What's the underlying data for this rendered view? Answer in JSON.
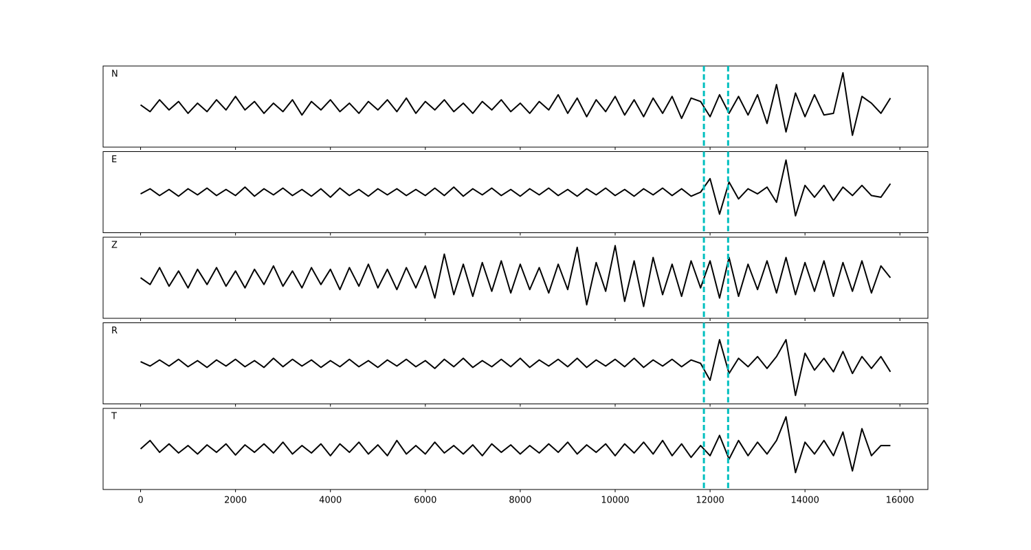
{
  "chart_data": {
    "type": "line",
    "x": [
      0,
      200,
      400,
      600,
      800,
      1000,
      1200,
      1400,
      1600,
      1800,
      2000,
      2200,
      2400,
      2600,
      2800,
      3000,
      3200,
      3400,
      3600,
      3800,
      4000,
      4200,
      4400,
      4600,
      4800,
      5000,
      5200,
      5400,
      5600,
      5800,
      6000,
      6200,
      6400,
      6600,
      6800,
      7000,
      7200,
      7400,
      7600,
      7800,
      8000,
      8200,
      8400,
      8600,
      8800,
      9000,
      9200,
      9400,
      9600,
      9800,
      10000,
      10200,
      10400,
      10600,
      10800,
      11000,
      11200,
      11400,
      11600,
      11800,
      12000,
      12200,
      12400,
      12600,
      12800,
      13000,
      13200,
      13400,
      13600,
      13800,
      14000,
      14200,
      14400,
      14600,
      14800,
      15000,
      15200,
      15400,
      15600,
      15800
    ],
    "series": [
      {
        "name": "N",
        "color": "#000000",
        "values": [
          0.05,
          -0.15,
          0.2,
          -0.1,
          0.15,
          -0.2,
          0.1,
          -0.15,
          0.2,
          -0.1,
          0.3,
          -0.1,
          0.15,
          -0.2,
          0.1,
          -0.15,
          0.2,
          -0.25,
          0.15,
          -0.1,
          0.2,
          -0.15,
          0.1,
          -0.2,
          0.15,
          -0.1,
          0.2,
          -0.15,
          0.25,
          -0.2,
          0.15,
          -0.1,
          0.2,
          -0.15,
          0.1,
          -0.2,
          0.15,
          -0.1,
          0.2,
          -0.15,
          0.1,
          -0.2,
          0.15,
          -0.1,
          0.35,
          -0.2,
          0.25,
          -0.3,
          0.2,
          -0.15,
          0.3,
          -0.25,
          0.2,
          -0.3,
          0.25,
          -0.2,
          0.3,
          -0.35,
          0.25,
          0.15,
          -0.3,
          0.35,
          -0.2,
          0.3,
          -0.25,
          0.35,
          -0.5,
          0.65,
          -0.75,
          0.4,
          -0.3,
          0.35,
          -0.25,
          -0.2,
          1.0,
          -0.85,
          0.3,
          0.1,
          -0.2,
          0.25
        ]
      },
      {
        "name": "E",
        "color": "#000000",
        "values": [
          -0.05,
          0.1,
          -0.1,
          0.08,
          -0.12,
          0.1,
          -0.08,
          0.12,
          -0.1,
          0.08,
          -0.1,
          0.15,
          -0.12,
          0.1,
          -0.08,
          0.12,
          -0.1,
          0.08,
          -0.12,
          0.1,
          -0.15,
          0.12,
          -0.1,
          0.08,
          -0.12,
          0.1,
          -0.08,
          0.1,
          -0.1,
          0.08,
          -0.1,
          0.12,
          -0.1,
          0.15,
          -0.12,
          0.1,
          -0.08,
          0.12,
          -0.1,
          0.08,
          -0.12,
          0.1,
          -0.08,
          0.12,
          -0.1,
          0.08,
          -0.12,
          0.1,
          -0.08,
          0.12,
          -0.1,
          0.08,
          -0.12,
          0.1,
          -0.08,
          0.12,
          -0.1,
          0.1,
          -0.12,
          0.0,
          0.4,
          -0.65,
          0.3,
          -0.2,
          0.1,
          -0.05,
          0.15,
          -0.3,
          0.95,
          -0.7,
          0.2,
          -0.15,
          0.2,
          -0.25,
          0.15,
          -0.1,
          0.2,
          -0.1,
          -0.15,
          0.25
        ]
      },
      {
        "name": "Z",
        "color": "#000000",
        "values": [
          0.0,
          -0.2,
          0.3,
          -0.25,
          0.2,
          -0.3,
          0.25,
          -0.2,
          0.3,
          -0.25,
          0.2,
          -0.3,
          0.25,
          -0.2,
          0.35,
          -0.25,
          0.2,
          -0.3,
          0.3,
          -0.2,
          0.25,
          -0.35,
          0.3,
          -0.25,
          0.4,
          -0.3,
          0.25,
          -0.35,
          0.3,
          -0.3,
          0.35,
          -0.6,
          0.7,
          -0.5,
          0.4,
          -0.55,
          0.45,
          -0.4,
          0.5,
          -0.45,
          0.4,
          -0.35,
          0.3,
          -0.45,
          0.4,
          -0.35,
          0.9,
          -0.8,
          0.45,
          -0.4,
          0.95,
          -0.7,
          0.5,
          -0.85,
          0.6,
          -0.5,
          0.4,
          -0.55,
          0.5,
          -0.3,
          0.5,
          -0.6,
          0.6,
          -0.55,
          0.4,
          -0.35,
          0.5,
          -0.45,
          0.6,
          -0.5,
          0.45,
          -0.4,
          0.5,
          -0.55,
          0.45,
          -0.4,
          0.5,
          -0.45,
          0.35,
          0.0
        ]
      },
      {
        "name": "R",
        "color": "#000000",
        "values": [
          0.05,
          -0.08,
          0.1,
          -0.08,
          0.12,
          -0.1,
          0.08,
          -0.12,
          0.1,
          -0.08,
          0.12,
          -0.1,
          0.08,
          -0.12,
          0.15,
          -0.1,
          0.12,
          -0.08,
          0.1,
          -0.12,
          0.08,
          -0.1,
          0.12,
          -0.1,
          0.08,
          -0.12,
          0.1,
          -0.08,
          0.12,
          -0.1,
          0.08,
          -0.15,
          0.12,
          -0.1,
          0.15,
          -0.12,
          0.08,
          -0.1,
          0.12,
          -0.1,
          0.15,
          -0.12,
          0.1,
          -0.08,
          0.12,
          -0.1,
          0.15,
          -0.12,
          0.1,
          -0.08,
          0.12,
          -0.1,
          0.15,
          -0.12,
          0.1,
          -0.08,
          0.12,
          -0.1,
          0.1,
          0.0,
          -0.5,
          0.7,
          -0.3,
          0.15,
          -0.1,
          0.2,
          -0.15,
          0.2,
          0.7,
          -0.95,
          0.3,
          -0.2,
          0.15,
          -0.25,
          0.35,
          -0.3,
          0.2,
          -0.15,
          0.2,
          -0.25
        ]
      },
      {
        "name": "T",
        "color": "#000000",
        "values": [
          0.0,
          0.25,
          -0.1,
          0.15,
          -0.12,
          0.1,
          -0.15,
          0.12,
          -0.1,
          0.15,
          -0.18,
          0.12,
          -0.1,
          0.15,
          -0.12,
          0.2,
          -0.15,
          0.1,
          -0.12,
          0.15,
          -0.2,
          0.15,
          -0.1,
          0.2,
          -0.15,
          0.12,
          -0.2,
          0.25,
          -0.15,
          0.1,
          -0.15,
          0.2,
          -0.12,
          0.1,
          -0.15,
          0.12,
          -0.2,
          0.15,
          -0.1,
          0.12,
          -0.15,
          0.1,
          -0.12,
          0.15,
          -0.1,
          0.2,
          -0.15,
          0.12,
          -0.1,
          0.15,
          -0.2,
          0.15,
          -0.12,
          0.2,
          -0.15,
          0.25,
          -0.2,
          0.15,
          -0.25,
          0.1,
          -0.2,
          0.4,
          -0.3,
          0.25,
          -0.2,
          0.2,
          -0.15,
          0.25,
          0.95,
          -0.7,
          0.2,
          -0.15,
          0.25,
          -0.2,
          0.5,
          -0.65,
          0.6,
          -0.2,
          0.1,
          0.1
        ]
      }
    ],
    "xlim": [
      -790,
      16590
    ],
    "xticks": [
      0,
      2000,
      4000,
      6000,
      8000,
      10000,
      12000,
      14000,
      16000
    ],
    "ylim": [
      -1.2,
      1.2
    ],
    "vlines": {
      "values": [
        11870,
        12380
      ],
      "color": "#00bfbf",
      "style": "dashed"
    }
  }
}
